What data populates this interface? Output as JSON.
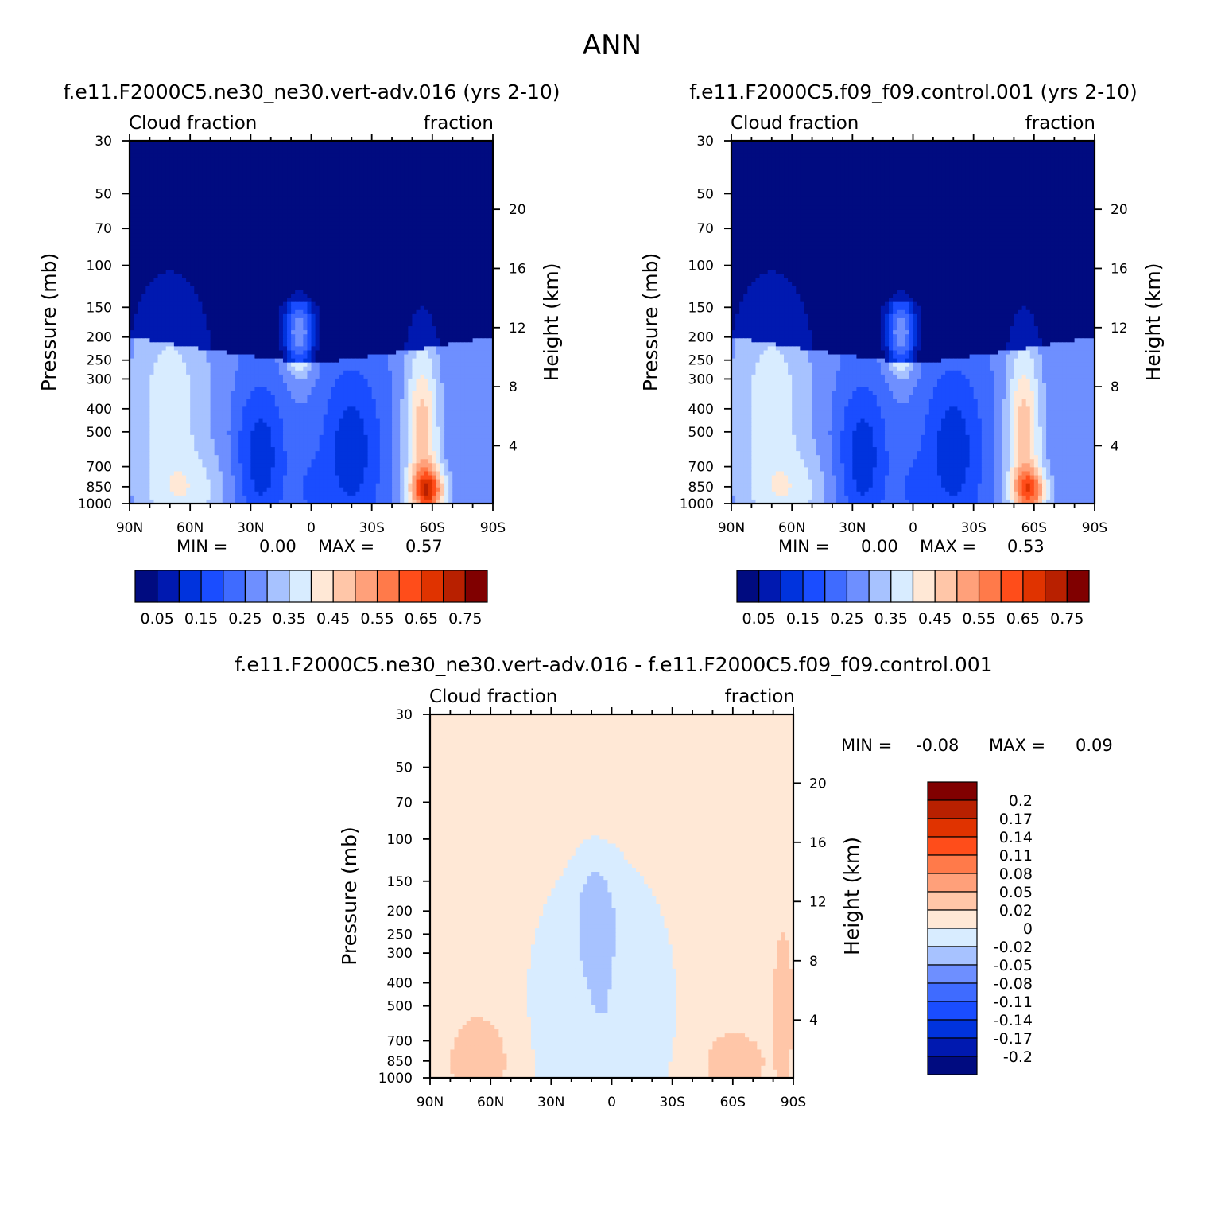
{
  "figure": {
    "title": "ANN"
  },
  "colors": {
    "blue_red_16": [
      "#000b80",
      "#0019b0",
      "#0033dd",
      "#1a4dff",
      "#3f6bff",
      "#6e8fff",
      "#a7c2ff",
      "#d8ecff",
      "#ffe8d6",
      "#ffc6a8",
      "#ffa07a",
      "#ff7a4a",
      "#ff4d1a",
      "#e03300",
      "#b82000",
      "#800000"
    ],
    "diff_12": [
      "#000b80",
      "#0019b0",
      "#0033dd",
      "#1a4dff",
      "#3f6bff",
      "#6e8fff",
      "#a7c2ff",
      "#d8ecff",
      "#ffe8d6",
      "#ffc6a8",
      "#ffa07a",
      "#ff7a4a",
      "#ff4d1a",
      "#e03300",
      "#b82000",
      "#800000"
    ]
  },
  "chart_data": [
    {
      "type": "heatmap",
      "title": "f.e11.F2000C5.ne30_ne30.vert-adv.016 (yrs 2-10)",
      "left_header": "Cloud fraction",
      "right_header": "fraction",
      "xlabel": "",
      "ylabel": "Pressure (mb)",
      "y2label": "Height (km)",
      "x_ticks": [
        "90N",
        "60N",
        "30N",
        "0",
        "30S",
        "60S",
        "90S"
      ],
      "y_ticks": [
        "30",
        "50",
        "70",
        "100",
        "150",
        "200",
        "250",
        "300",
        "400",
        "500",
        "700",
        "850",
        "1000"
      ],
      "y2_ticks": [
        "20",
        "16",
        "12",
        "8",
        "4"
      ],
      "min_label": "MIN =",
      "min_value": "0.00",
      "max_label": "MAX =",
      "max_value": "0.57",
      "colorbar_labels": [
        "0.05",
        "0.15",
        "0.25",
        "0.35",
        "0.45",
        "0.55",
        "0.65",
        "0.75"
      ],
      "colorbar_levels": [
        0.05,
        0.1,
        0.15,
        0.2,
        0.25,
        0.3,
        0.35,
        0.4,
        0.45,
        0.5,
        0.55,
        0.6,
        0.65,
        0.7,
        0.75
      ],
      "colorbar_orientation": "horizontal"
    },
    {
      "type": "heatmap",
      "title": "f.e11.F2000C5.f09_f09.control.001 (yrs 2-10)",
      "left_header": "Cloud fraction",
      "right_header": "fraction",
      "xlabel": "",
      "ylabel": "Pressure (mb)",
      "y2label": "Height (km)",
      "x_ticks": [
        "90N",
        "60N",
        "30N",
        "0",
        "30S",
        "60S",
        "90S"
      ],
      "y_ticks": [
        "30",
        "50",
        "70",
        "100",
        "150",
        "200",
        "250",
        "300",
        "400",
        "500",
        "700",
        "850",
        "1000"
      ],
      "y2_ticks": [
        "20",
        "16",
        "12",
        "8",
        "4"
      ],
      "min_label": "MIN =",
      "min_value": "0.00",
      "max_label": "MAX =",
      "max_value": "0.53",
      "colorbar_labels": [
        "0.05",
        "0.15",
        "0.25",
        "0.35",
        "0.45",
        "0.55",
        "0.65",
        "0.75"
      ],
      "colorbar_levels": [
        0.05,
        0.1,
        0.15,
        0.2,
        0.25,
        0.3,
        0.35,
        0.4,
        0.45,
        0.5,
        0.55,
        0.6,
        0.65,
        0.7,
        0.75
      ],
      "colorbar_orientation": "horizontal"
    },
    {
      "type": "heatmap",
      "title": "f.e11.F2000C5.ne30_ne30.vert-adv.016 - f.e11.F2000C5.f09_f09.control.001",
      "left_header": "Cloud fraction",
      "right_header": "fraction",
      "xlabel": "",
      "ylabel": "Pressure (mb)",
      "y2label": "Height (km)",
      "x_ticks": [
        "90N",
        "60N",
        "30N",
        "0",
        "30S",
        "60S",
        "90S"
      ],
      "y_ticks": [
        "30",
        "50",
        "70",
        "100",
        "150",
        "200",
        "250",
        "300",
        "400",
        "500",
        "700",
        "850",
        "1000"
      ],
      "y2_ticks": [
        "20",
        "16",
        "12",
        "8",
        "4"
      ],
      "min_label": "MIN =",
      "min_value": "-0.08",
      "max_label": "MAX =",
      "max_value": "0.09",
      "colorbar_labels": [
        "0.2",
        "0.17",
        "0.14",
        "0.11",
        "0.08",
        "0.05",
        "0.02",
        "0",
        "-0.02",
        "-0.05",
        "-0.08",
        "-0.11",
        "-0.14",
        "-0.17",
        "-0.2"
      ],
      "colorbar_levels": [
        -0.2,
        -0.17,
        -0.14,
        -0.11,
        -0.08,
        -0.05,
        -0.02,
        0,
        0.02,
        0.05,
        0.08,
        0.11,
        0.14,
        0.17,
        0.2
      ],
      "colorbar_orientation": "vertical"
    }
  ]
}
